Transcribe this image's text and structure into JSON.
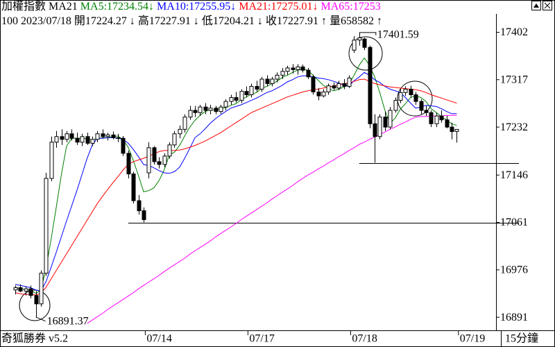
{
  "chart_data": {
    "type": "candlestick",
    "title": "加權指數 MA21",
    "info": [
      "100 2023/07/18",
      "開17224.27 ↓",
      "高17227.91 ↓",
      "低17204.21 ↓",
      "收17227.91 ↑",
      "量658582 ↑"
    ],
    "footer": "奇狐勝券 v5.2",
    "period": "15分鐘",
    "max_label": "17401.59",
    "min_label": "16891.37",
    "up_color": "#ffffff",
    "down_color": "#000000",
    "ylim": [
      16875,
      17435
    ],
    "yticks": [
      17402,
      17317,
      17232,
      17146,
      17061,
      16976,
      16891
    ],
    "support_levels": [
      17061,
      17168
    ],
    "categories": [
      null,
      null,
      null,
      null,
      null,
      null,
      null,
      null,
      null,
      null,
      null,
      null,
      null,
      null,
      null,
      null,
      null,
      null,
      null,
      null,
      null,
      null,
      null,
      null,
      null,
      null,
      "07/14",
      null,
      null,
      null,
      null,
      null,
      null,
      null,
      null,
      null,
      null,
      null,
      null,
      null,
      null,
      null,
      null,
      null,
      null,
      null,
      "07/17",
      null,
      null,
      null,
      null,
      null,
      null,
      null,
      null,
      null,
      null,
      null,
      null,
      null,
      null,
      null,
      null,
      null,
      null,
      null,
      "07/18",
      null,
      null,
      null,
      null,
      null,
      null,
      null,
      null,
      null,
      null,
      null,
      null,
      null,
      null,
      null,
      null,
      null,
      null,
      null,
      null,
      "07/19"
    ],
    "candles": [
      [
        16940,
        16948,
        16932,
        16944
      ],
      [
        16944,
        16950,
        16936,
        16938
      ],
      [
        16938,
        16946,
        16930,
        16942
      ],
      [
        16942,
        16948,
        16925,
        16930
      ],
      [
        16930,
        16938,
        16891.37,
        16915
      ],
      [
        16915,
        16975,
        16910,
        16970
      ],
      [
        16970,
        17150,
        16965,
        17140
      ],
      [
        17140,
        17215,
        17135,
        17205
      ],
      [
        17205,
        17225,
        17195,
        17215
      ],
      [
        17215,
        17228,
        17200,
        17210
      ],
      [
        17210,
        17225,
        17205,
        17220
      ],
      [
        17220,
        17228,
        17208,
        17212
      ],
      [
        17212,
        17222,
        17200,
        17205
      ],
      [
        17205,
        17220,
        17198,
        17215
      ],
      [
        17215,
        17222,
        17200,
        17203
      ],
      [
        17203,
        17215,
        17198,
        17210
      ],
      [
        17210,
        17225,
        17205,
        17220
      ],
      [
        17220,
        17228,
        17212,
        17215
      ],
      [
        17215,
        17222,
        17208,
        17218
      ],
      [
        17218,
        17224,
        17210,
        17213
      ],
      [
        17213,
        17220,
        17205,
        17212
      ],
      [
        17212,
        17216,
        17180,
        17185
      ],
      [
        17185,
        17190,
        17140,
        17148
      ],
      [
        17148,
        17152,
        17095,
        17100
      ],
      [
        17100,
        17110,
        17075,
        17082
      ],
      [
        17082,
        17088,
        17061,
        17066
      ],
      [
        17150,
        17205,
        17140,
        17195
      ],
      [
        17195,
        17198,
        17165,
        17170
      ],
      [
        17170,
        17178,
        17158,
        17165
      ],
      [
        17165,
        17185,
        17160,
        17180
      ],
      [
        17180,
        17205,
        17175,
        17200
      ],
      [
        17200,
        17225,
        17195,
        17220
      ],
      [
        17220,
        17235,
        17212,
        17228
      ],
      [
        17228,
        17255,
        17222,
        17250
      ],
      [
        17250,
        17270,
        17245,
        17262
      ],
      [
        17262,
        17270,
        17250,
        17258
      ],
      [
        17258,
        17272,
        17252,
        17268
      ],
      [
        17268,
        17275,
        17255,
        17262
      ],
      [
        17262,
        17272,
        17255,
        17266
      ],
      [
        17266,
        17270,
        17255,
        17260
      ],
      [
        17260,
        17272,
        17256,
        17268
      ],
      [
        17268,
        17282,
        17262,
        17278
      ],
      [
        17278,
        17290,
        17272,
        17285
      ],
      [
        17285,
        17295,
        17276,
        17280
      ],
      [
        17280,
        17300,
        17275,
        17296
      ],
      [
        17296,
        17305,
        17285,
        17290
      ],
      [
        17290,
        17310,
        17285,
        17305
      ],
      [
        17305,
        17315,
        17295,
        17300
      ],
      [
        17300,
        17322,
        17295,
        17318
      ],
      [
        17318,
        17325,
        17305,
        17310
      ],
      [
        17310,
        17322,
        17305,
        17318
      ],
      [
        17318,
        17330,
        17312,
        17325
      ],
      [
        17325,
        17338,
        17318,
        17332
      ],
      [
        17332,
        17342,
        17325,
        17338
      ],
      [
        17338,
        17345,
        17328,
        17335
      ],
      [
        17335,
        17345,
        17326,
        17340
      ],
      [
        17340,
        17344,
        17330,
        17334
      ],
      [
        17334,
        17338,
        17318,
        17322
      ],
      [
        17322,
        17326,
        17290,
        17295
      ],
      [
        17295,
        17302,
        17280,
        17288
      ],
      [
        17288,
        17300,
        17285,
        17295
      ],
      [
        17295,
        17310,
        17290,
        17306
      ],
      [
        17306,
        17312,
        17298,
        17302
      ],
      [
        17302,
        17315,
        17298,
        17310
      ],
      [
        17310,
        17318,
        17300,
        17305
      ],
      [
        17305,
        17325,
        17302,
        17320
      ],
      [
        17370,
        17395,
        17365,
        17388
      ],
      [
        17388,
        17401.59,
        17378,
        17392
      ],
      [
        17390,
        17392,
        17370,
        17375
      ],
      [
        17375,
        17378,
        17230,
        17238
      ],
      [
        17238,
        17255,
        17168,
        17215
      ],
      [
        17215,
        17255,
        17210,
        17250
      ],
      [
        17250,
        17260,
        17225,
        17232
      ],
      [
        17232,
        17268,
        17228,
        17262
      ],
      [
        17262,
        17285,
        17258,
        17280
      ],
      [
        17280,
        17300,
        17275,
        17294
      ],
      [
        17294,
        17305,
        17288,
        17300
      ],
      [
        17300,
        17306,
        17285,
        17290
      ],
      [
        17290,
        17295,
        17272,
        17278
      ],
      [
        17278,
        17282,
        17255,
        17262
      ],
      [
        17262,
        17270,
        17252,
        17258
      ],
      [
        17258,
        17262,
        17232,
        17238
      ],
      [
        17238,
        17258,
        17232,
        17252
      ],
      [
        17252,
        17262,
        17240,
        17245
      ],
      [
        17245,
        17252,
        17230,
        17232
      ],
      [
        17232,
        17240,
        17210,
        17224
      ],
      [
        17224.27,
        17227.91,
        17204.21,
        17227.91
      ],
      null
    ],
    "series": [
      {
        "name": "MA5",
        "header": "MA5:17234.54",
        "arrow": "↓",
        "color": "#008000",
        "values": [
          16945,
          16942,
          16941,
          16939,
          16934,
          16939,
          16979,
          17032,
          17089,
          17148,
          17198,
          17212,
          17212,
          17212,
          17211,
          17209,
          17211,
          17213,
          17213,
          17215,
          17216,
          17209,
          17196,
          17172,
          17145,
          17116,
          17118,
          17123,
          17136,
          17155,
          17182,
          17187,
          17199,
          17216,
          17232,
          17244,
          17253,
          17260,
          17263,
          17263,
          17265,
          17267,
          17271,
          17274,
          17281,
          17286,
          17291,
          17294,
          17302,
          17305,
          17310,
          17314,
          17321,
          17325,
          17330,
          17334,
          17336,
          17334,
          17325,
          17316,
          17307,
          17301,
          17297,
          17300,
          17304,
          17309,
          17325,
          17343,
          17356,
          17343,
          17322,
          17294,
          17262,
          17239,
          17248,
          17264,
          17274,
          17285,
          17288,
          17285,
          17278,
          17265,
          17258,
          17251,
          17245,
          17238,
          17235,
          null
        ]
      },
      {
        "name": "MA10",
        "header": "MA10:17255.95",
        "arrow": "↓",
        "color": "#0000ff",
        "values": [
          16950,
          16948,
          16946,
          16944,
          16940,
          16938,
          16955,
          16981,
          17008,
          17036,
          17064,
          17091,
          17118,
          17147,
          17176,
          17200,
          17212,
          17212,
          17213,
          17213,
          17212,
          17210,
          17203,
          17192,
          17179,
          17165,
          17163,
          17159,
          17154,
          17150,
          17149,
          17152,
          17160,
          17176,
          17194,
          17213,
          17220,
          17229,
          17239,
          17247,
          17254,
          17260,
          17266,
          17269,
          17272,
          17276,
          17280,
          17284,
          17289,
          17294,
          17297,
          17302,
          17307,
          17313,
          17317,
          17322,
          17324,
          17324,
          17322,
          17320,
          17319,
          17317,
          17314,
          17311,
          17307,
          17306,
          17315,
          17322,
          17330,
          17325,
          17317,
          17312,
          17305,
          17300,
          17297,
          17294,
          17285,
          17275,
          17266,
          17268,
          17271,
          17270,
          17269,
          17265,
          17260,
          17256,
          17256,
          null
        ]
      },
      {
        "name": "MA21",
        "header": "MA21:17275.01",
        "arrow": "↓",
        "color": "#ff0000",
        "values": [
          16935,
          16933,
          16932,
          16932,
          16931,
          16934,
          16945,
          16960,
          16975,
          16990,
          17005,
          17020,
          17035,
          17050,
          17065,
          17080,
          17095,
          17108,
          17120,
          17132,
          17143,
          17155,
          17165,
          17170,
          17173,
          17176,
          17180,
          17184,
          17188,
          17190,
          17190,
          17190,
          17191,
          17193,
          17196,
          17199,
          17203,
          17207,
          17212,
          17217,
          17222,
          17228,
          17234,
          17240,
          17246,
          17252,
          17258,
          17262,
          17266,
          17270,
          17274,
          17278,
          17282,
          17286,
          17289,
          17292,
          17295,
          17297,
          17299,
          17300,
          17302,
          17304,
          17306,
          17308,
          17310,
          17311,
          17314,
          17317,
          17318,
          17314,
          17310,
          17308,
          17306,
          17304,
          17303,
          17302,
          17301,
          17300,
          17299,
          17297,
          17294,
          17290,
          17287,
          17284,
          17281,
          17278,
          17275,
          null
        ]
      },
      {
        "name": "MA65",
        "header": "MA65:17253",
        "color": "#ff00ff",
        "values": [
          null,
          null,
          null,
          null,
          null,
          null,
          null,
          null,
          null,
          null,
          null,
          null,
          null,
          null,
          16880,
          16886,
          16892,
          16898,
          16905,
          16911,
          16917,
          16923,
          16929,
          16935,
          16942,
          16948,
          16954,
          16960,
          16966,
          16973,
          16979,
          16985,
          16991,
          16997,
          17004,
          17010,
          17016,
          17022,
          17028,
          17035,
          17041,
          17047,
          17053,
          17059,
          17066,
          17072,
          17078,
          17084,
          17090,
          17096,
          17103,
          17109,
          17115,
          17121,
          17127,
          17134,
          17140,
          17146,
          17151,
          17157,
          17162,
          17168,
          17173,
          17179,
          17184,
          17190,
          17195,
          17201,
          17205,
          17210,
          17214,
          17219,
          17223,
          17228,
          17232,
          17237,
          17241,
          17246,
          17250,
          17251,
          17251,
          17252,
          17252,
          17252,
          17253,
          17253,
          17253,
          null
        ]
      }
    ]
  }
}
